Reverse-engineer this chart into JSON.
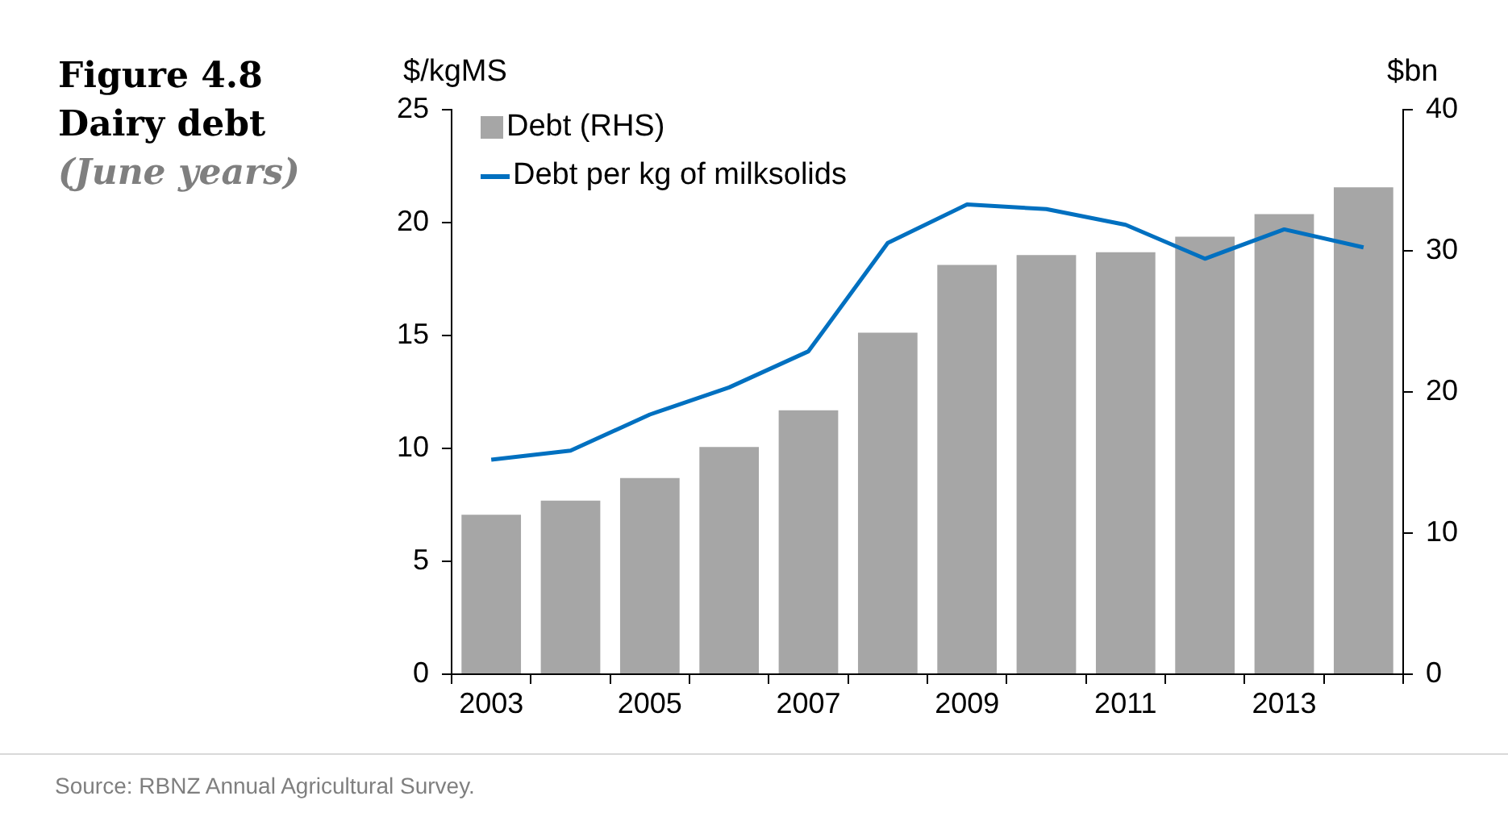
{
  "chart_data": {
    "type": "bar",
    "title": "Figure 4.8",
    "subtitle": "Dairy debt",
    "ylabel": "$/kgMS",
    "y2label": "$bn",
    "annotations": [
      "(June years)",
      "Source:  RBNZ Annual Agricultural Survey."
    ],
    "categories": [
      "2003",
      null,
      "2005",
      null,
      "2007",
      null,
      "2009",
      null,
      "2011",
      null,
      "2013",
      null
    ],
    "series": [
      {
        "name": "Debt (RHS)",
        "axis": "y2",
        "color": "#a6a6a6",
        "values": [
          11.3,
          12.3,
          13.9,
          16.1,
          18.7,
          24.2,
          29.0,
          29.7,
          29.9,
          31.0,
          32.6,
          34.5
        ]
      },
      {
        "name": "Debt per kg of milksolids",
        "type": "line",
        "axis": "y",
        "color": "#0070c0",
        "values": [
          9.5,
          9.9,
          11.5,
          12.7,
          14.3,
          19.1,
          20.8,
          20.6,
          19.9,
          18.4,
          19.7,
          18.9
        ]
      }
    ],
    "ylim": [
      0,
      25
    ],
    "yticks": [
      0,
      5,
      10,
      15,
      20,
      25
    ],
    "y2lim": [
      0,
      40
    ],
    "y2ticks": [
      0,
      10,
      20,
      30,
      40
    ],
    "grid": false,
    "legend": "top left",
    "marker": "none",
    "line_style": "solid"
  }
}
